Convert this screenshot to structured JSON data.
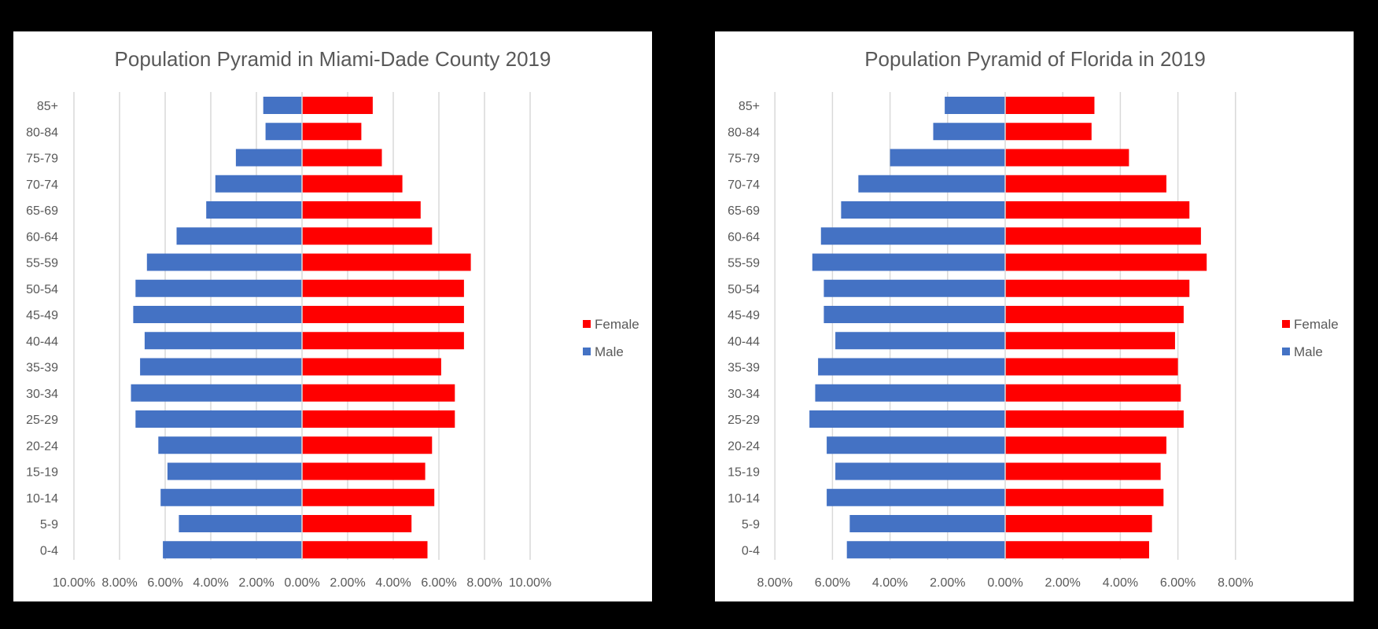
{
  "colors": {
    "male": "#4472C4",
    "female": "#FF0000",
    "grid": "#D9D9D9",
    "background": "#000000",
    "panel": "#FFFFFF"
  },
  "chart_data": [
    {
      "type": "bar",
      "orientation": "horizontal-diverging",
      "title": "Population Pyramid in Miami-Dade County 2019",
      "categories": [
        "85+",
        "80-84",
        "75-79",
        "70-74",
        "65-69",
        "60-64",
        "55-59",
        "50-54",
        "45-49",
        "40-44",
        "35-39",
        "30-34",
        "25-29",
        "20-24",
        "15-19",
        "10-14",
        "5-9",
        "0-4"
      ],
      "xlim": [
        -10,
        10
      ],
      "x_tick_labels": [
        "10.00%",
        "8.00%",
        "6.00%",
        "4.00%",
        "2.00%",
        "0.00%",
        "2.00%",
        "4.00%",
        "6.00%",
        "8.00%",
        "10.00%"
      ],
      "grid": true,
      "legend_position": "right",
      "series": [
        {
          "name": "Female",
          "side": "right",
          "values": [
            3.1,
            2.6,
            3.5,
            4.4,
            5.2,
            5.7,
            7.4,
            7.1,
            7.1,
            7.1,
            6.1,
            6.7,
            6.7,
            5.7,
            5.4,
            5.8,
            4.8,
            5.5
          ]
        },
        {
          "name": "Male",
          "side": "left",
          "values": [
            1.7,
            1.6,
            2.9,
            3.8,
            4.2,
            5.5,
            6.8,
            7.3,
            7.4,
            6.9,
            7.1,
            7.5,
            7.3,
            6.3,
            5.9,
            6.2,
            5.4,
            6.1
          ]
        }
      ]
    },
    {
      "type": "bar",
      "orientation": "horizontal-diverging",
      "title": "Population Pyramid of Florida in 2019",
      "categories": [
        "85+",
        "80-84",
        "75-79",
        "70-74",
        "65-69",
        "60-64",
        "55-59",
        "50-54",
        "45-49",
        "40-44",
        "35-39",
        "30-34",
        "25-29",
        "20-24",
        "15-19",
        "10-14",
        "5-9",
        "0-4"
      ],
      "xlim": [
        -8,
        8
      ],
      "x_tick_labels": [
        "8.00%",
        "6.00%",
        "4.00%",
        "2.00%",
        "0.00%",
        "2.00%",
        "4.00%",
        "6.00%",
        "8.00%"
      ],
      "grid": true,
      "legend_position": "right",
      "series": [
        {
          "name": "Female",
          "side": "right",
          "values": [
            3.1,
            3.0,
            4.3,
            5.6,
            6.4,
            6.8,
            7.0,
            6.4,
            6.2,
            5.9,
            6.0,
            6.1,
            6.2,
            5.6,
            5.4,
            5.5,
            5.1,
            5.0
          ]
        },
        {
          "name": "Male",
          "side": "left",
          "values": [
            2.1,
            2.5,
            4.0,
            5.1,
            5.7,
            6.4,
            6.7,
            6.3,
            6.3,
            5.9,
            6.5,
            6.6,
            6.8,
            6.2,
            5.9,
            6.2,
            5.4,
            5.5
          ]
        }
      ]
    }
  ]
}
